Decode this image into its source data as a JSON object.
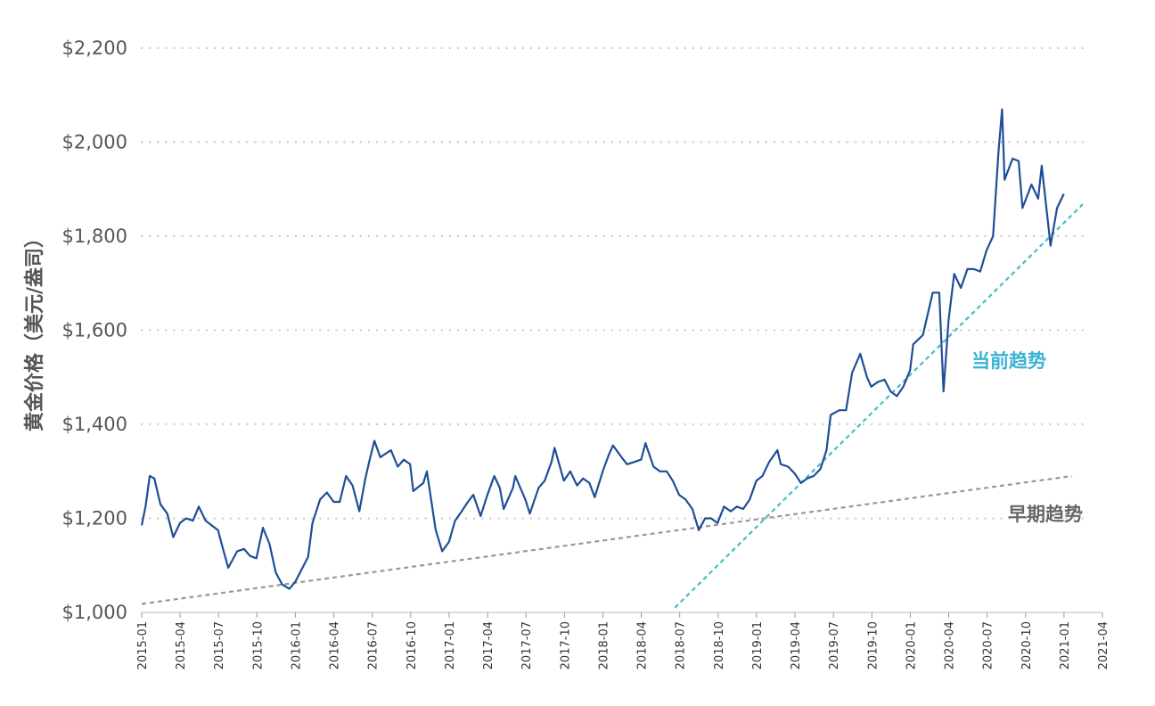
{
  "chart_data": {
    "type": "line",
    "ylabel": "黄金价格（美元/盎司）",
    "xlabel": "",
    "ylim": [
      1000,
      2200
    ],
    "y_ticks": [
      1000,
      1200,
      1400,
      1600,
      1800,
      2000,
      2200
    ],
    "y_tick_labels": [
      "$1,000",
      "$1,200",
      "$1,400",
      "$1,600",
      "$1,800",
      "$2,000",
      "$2,200"
    ],
    "x_ticks": [
      "2015-01",
      "2015-04",
      "2015-07",
      "2015-10",
      "2016-01",
      "2016-04",
      "2016-07",
      "2016-10",
      "2017-01",
      "2017-04",
      "2017-07",
      "2017-10",
      "2018-01",
      "2018-04",
      "2018-07",
      "2018-10",
      "2019-01",
      "2019-04",
      "2019-07",
      "2019-10",
      "2020-01",
      "2020-04",
      "2020-07",
      "2020-10",
      "2021-01",
      "2021-04"
    ],
    "grid": {
      "y": true,
      "x": false,
      "style": "dotted"
    },
    "colors": {
      "price": "#1f4e96",
      "current_trend": "#4cb8c8",
      "early_trend": "#999999",
      "current_label": "#3bb2d6",
      "early_label": "#666666"
    },
    "series": [
      {
        "id": "gold-price",
        "x": [
          "2015-01-01",
          "2015-01-10",
          "2015-01-20",
          "2015-01-31",
          "2015-02-15",
          "2015-03-01",
          "2015-03-15",
          "2015-03-31",
          "2015-04-15",
          "2015-05-01",
          "2015-05-15",
          "2015-05-31",
          "2015-06-15",
          "2015-06-30",
          "2015-07-10",
          "2015-07-24",
          "2015-08-15",
          "2015-08-31",
          "2015-09-15",
          "2015-09-30",
          "2015-10-15",
          "2015-10-31",
          "2015-11-15",
          "2015-11-30",
          "2015-12-17",
          "2015-12-31",
          "2016-01-15",
          "2016-01-31",
          "2016-02-11",
          "2016-02-29",
          "2016-03-15",
          "2016-03-31",
          "2016-04-15",
          "2016-04-30",
          "2016-05-15",
          "2016-05-31",
          "2016-06-15",
          "2016-06-24",
          "2016-07-06",
          "2016-07-20",
          "2016-08-15",
          "2016-08-31",
          "2016-09-15",
          "2016-09-30",
          "2016-10-07",
          "2016-10-31",
          "2016-11-09",
          "2016-11-30",
          "2016-12-15",
          "2016-12-31",
          "2017-01-15",
          "2017-01-31",
          "2017-02-15",
          "2017-02-28",
          "2017-03-15",
          "2017-03-31",
          "2017-04-17",
          "2017-04-30",
          "2017-05-09",
          "2017-05-31",
          "2017-06-06",
          "2017-06-30",
          "2017-07-10",
          "2017-07-31",
          "2017-08-15",
          "2017-08-31",
          "2017-09-08",
          "2017-09-30",
          "2017-10-15",
          "2017-10-31",
          "2017-11-15",
          "2017-11-30",
          "2017-12-12",
          "2017-12-31",
          "2018-01-15",
          "2018-01-25",
          "2018-02-15",
          "2018-02-28",
          "2018-03-15",
          "2018-03-31",
          "2018-04-11",
          "2018-04-30",
          "2018-05-15",
          "2018-05-31",
          "2018-06-15",
          "2018-06-30",
          "2018-07-15",
          "2018-07-31",
          "2018-08-16",
          "2018-08-31",
          "2018-09-15",
          "2018-09-30",
          "2018-10-15",
          "2018-10-31",
          "2018-11-15",
          "2018-11-30",
          "2018-12-15",
          "2018-12-31",
          "2019-01-15",
          "2019-01-31",
          "2019-02-20",
          "2019-02-28",
          "2019-03-15",
          "2019-03-31",
          "2019-04-15",
          "2019-04-30",
          "2019-05-15",
          "2019-05-31",
          "2019-06-15",
          "2019-06-25",
          "2019-07-15",
          "2019-07-31",
          "2019-08-15",
          "2019-09-04",
          "2019-09-20",
          "2019-09-30",
          "2019-10-15",
          "2019-10-31",
          "2019-11-15",
          "2019-11-30",
          "2019-12-15",
          "2019-12-31",
          "2020-01-08",
          "2020-01-31",
          "2020-02-24",
          "2020-03-09",
          "2020-03-19",
          "2020-03-31",
          "2020-04-14",
          "2020-04-30",
          "2020-05-15",
          "2020-05-31",
          "2020-06-15",
          "2020-06-30",
          "2020-07-15",
          "2020-07-28",
          "2020-08-06",
          "2020-08-12",
          "2020-08-31",
          "2020-09-15",
          "2020-09-24",
          "2020-10-15",
          "2020-10-31",
          "2020-11-09",
          "2020-11-30",
          "2020-12-15",
          "2020-12-31"
        ],
        "values": [
          1185,
          1225,
          1290,
          1285,
          1230,
          1210,
          1160,
          1190,
          1200,
          1195,
          1225,
          1195,
          1185,
          1175,
          1140,
          1095,
          1130,
          1135,
          1120,
          1115,
          1180,
          1145,
          1085,
          1060,
          1050,
          1065,
          1090,
          1118,
          1190,
          1240,
          1255,
          1235,
          1235,
          1290,
          1270,
          1215,
          1285,
          1320,
          1365,
          1330,
          1345,
          1310,
          1325,
          1315,
          1258,
          1275,
          1300,
          1175,
          1130,
          1150,
          1195,
          1215,
          1235,
          1250,
          1205,
          1250,
          1290,
          1265,
          1220,
          1265,
          1290,
          1240,
          1210,
          1265,
          1280,
          1320,
          1350,
          1280,
          1300,
          1270,
          1285,
          1275,
          1245,
          1300,
          1335,
          1355,
          1330,
          1315,
          1320,
          1325,
          1360,
          1310,
          1300,
          1300,
          1280,
          1250,
          1240,
          1220,
          1175,
          1200,
          1200,
          1190,
          1225,
          1215,
          1225,
          1220,
          1240,
          1280,
          1290,
          1320,
          1345,
          1315,
          1310,
          1295,
          1275,
          1285,
          1290,
          1305,
          1345,
          1420,
          1430,
          1430,
          1510,
          1550,
          1500,
          1480,
          1490,
          1495,
          1470,
          1460,
          1480,
          1515,
          1570,
          1590,
          1680,
          1680,
          1470,
          1620,
          1720,
          1690,
          1730,
          1730,
          1725,
          1770,
          1800,
          1980,
          2070,
          1920,
          1965,
          1960,
          1860,
          1910,
          1880,
          1950,
          1780,
          1860,
          1890
        ]
      }
    ],
    "trendlines": [
      {
        "id": "early-trend",
        "label": "早期趋势",
        "from": {
          "x": "2015-01-01",
          "y": 1018
        },
        "to": {
          "x": "2021-01-20",
          "y": 1290
        }
      },
      {
        "id": "current-trend",
        "label": "当前趋势",
        "from": {
          "x": "2018-06-20",
          "y": 1010
        },
        "to": {
          "x": "2021-02-15",
          "y": 1868
        }
      }
    ]
  }
}
